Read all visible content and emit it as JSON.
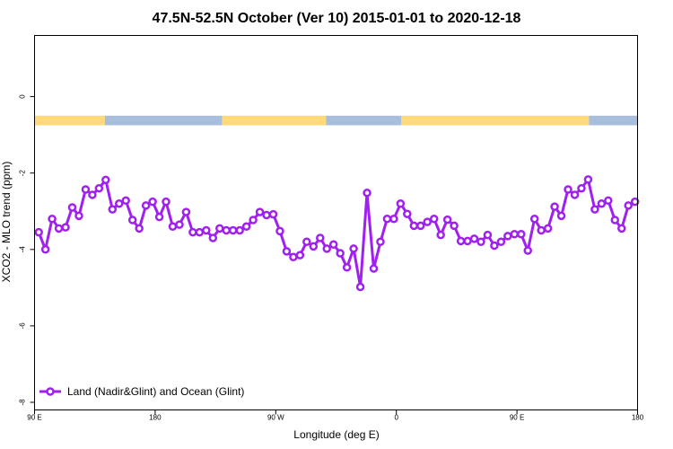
{
  "chart_data": {
    "type": "line",
    "title": "47.5N-52.5N October (Ver 10)   2015-01-01 to 2020-12-18",
    "xlabel": "Longitude (deg E)",
    "ylabel": "XCO2 - MLO trend (ppm)",
    "xlim": [
      90,
      450
    ],
    "ylim": [
      -8.2,
      1.6
    ],
    "x_ticks": [
      {
        "value": 90,
        "label": "90 E"
      },
      {
        "value": 162,
        "label": "180"
      },
      {
        "value": 234,
        "label": "90 W"
      },
      {
        "value": 306,
        "label": "0"
      },
      {
        "value": 378,
        "label": "90 E"
      },
      {
        "value": 450,
        "label": "180"
      }
    ],
    "y_ticks": [
      0,
      -2,
      -4,
      -6,
      -8
    ],
    "land_ocean_strip": {
      "y_range": [
        -0.75,
        -0.5
      ],
      "land_color": "#ffd97a",
      "ocean_color": "#a7bedd",
      "segments": [
        {
          "type": "land",
          "from": 90,
          "to": 132
        },
        {
          "type": "ocean",
          "from": 132,
          "to": 202
        },
        {
          "type": "land",
          "from": 202,
          "to": 264
        },
        {
          "type": "ocean",
          "from": 264,
          "to": 309
        },
        {
          "type": "land",
          "from": 309,
          "to": 421
        },
        {
          "type": "ocean",
          "from": 421,
          "to": 450
        }
      ]
    },
    "series": [
      {
        "name": "Land (Nadir&Glint) and Ocean (Glint)",
        "color": "#a020f0",
        "x": [
          92.5,
          96.5,
          100.5,
          104.5,
          108.5,
          112.5,
          116.5,
          120.5,
          124.5,
          128.5,
          132.5,
          136.5,
          140.5,
          144.5,
          148.5,
          152.5,
          156.5,
          160.5,
          164.5,
          168.5,
          172.5,
          176.5,
          180.5,
          184.5,
          188.5,
          192.5,
          196.5,
          200.5,
          204.5,
          208.5,
          212.5,
          216.5,
          220.5,
          224.5,
          228.5,
          232.5,
          236.5,
          240.5,
          244.5,
          248.5,
          252.5,
          256.5,
          260.5,
          264.5,
          268.5,
          272.5,
          276.5,
          280.5,
          284.5,
          288.5,
          292.5,
          296.5,
          300.5,
          304.5,
          308.5,
          312.5,
          316.5,
          320.5,
          324.5,
          328.5,
          332.5,
          336.5,
          340.5,
          344.5,
          348.5,
          352.5,
          356.5,
          360.5,
          364.5,
          368.5,
          372.5,
          376.5,
          380.5,
          384.5,
          388.5,
          392.5,
          396.5,
          400.5,
          404.5,
          408.5,
          412.5,
          416.5,
          420.5,
          424.5,
          428.5,
          432.5,
          436.5,
          440.5,
          444.5,
          448.5
        ],
        "values": [
          -3.55,
          -4.0,
          -3.2,
          -3.45,
          -3.42,
          -2.9,
          -3.12,
          -2.43,
          -2.57,
          -2.4,
          -2.18,
          -2.95,
          -2.8,
          -2.72,
          -3.23,
          -3.45,
          -2.85,
          -2.75,
          -3.15,
          -2.75,
          -3.4,
          -3.35,
          -3.02,
          -3.55,
          -3.55,
          -3.5,
          -3.7,
          -3.45,
          -3.5,
          -3.5,
          -3.5,
          -3.4,
          -3.23,
          -3.02,
          -3.1,
          -3.08,
          -3.52,
          -4.05,
          -4.2,
          -4.15,
          -3.8,
          -3.92,
          -3.7,
          -3.98,
          -3.87,
          -4.1,
          -4.47,
          -3.98,
          -4.98,
          -2.52,
          -4.5,
          -3.8,
          -3.2,
          -3.2,
          -2.8,
          -3.07,
          -3.38,
          -3.38,
          -3.28,
          -3.2,
          -3.62,
          -3.22,
          -3.38,
          -3.78,
          -3.78,
          -3.72,
          -3.8,
          -3.62,
          -3.9,
          -3.8,
          -3.65,
          -3.6,
          -3.6,
          -4.03,
          -3.2,
          -3.5,
          -3.45,
          -2.88,
          -3.12,
          -2.43,
          -2.57,
          -2.4,
          -2.17,
          -2.95,
          -2.8,
          -2.72,
          -3.23,
          -3.45,
          -2.85,
          -2.75
        ]
      }
    ],
    "legend": {
      "position": "bottom-left"
    },
    "grid": false
  }
}
